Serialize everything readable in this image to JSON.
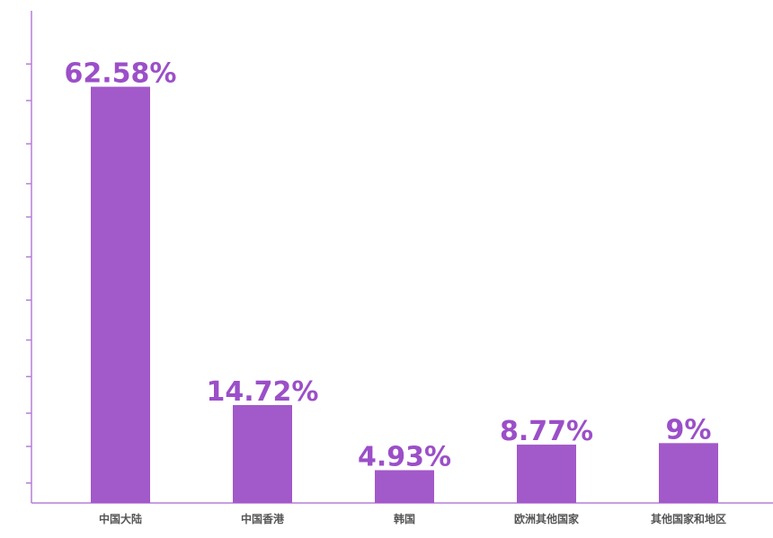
{
  "chart_data": {
    "type": "bar",
    "categories": [
      "中国大陆",
      "中国香港",
      "韩国",
      "欧洲其他国家",
      "其他国家和地区"
    ],
    "values": [
      62.58,
      14.72,
      4.93,
      8.77,
      9
    ],
    "value_labels": [
      "62.58%",
      "14.72%",
      "4.93%",
      "8.77%",
      "9%"
    ],
    "color": "#a259c9",
    "ylim": [
      0,
      74
    ],
    "yticks": [
      3,
      8.5,
      13.5,
      19,
      24.5,
      30.5,
      37,
      43,
      48,
      54,
      60.5,
      66
    ]
  }
}
